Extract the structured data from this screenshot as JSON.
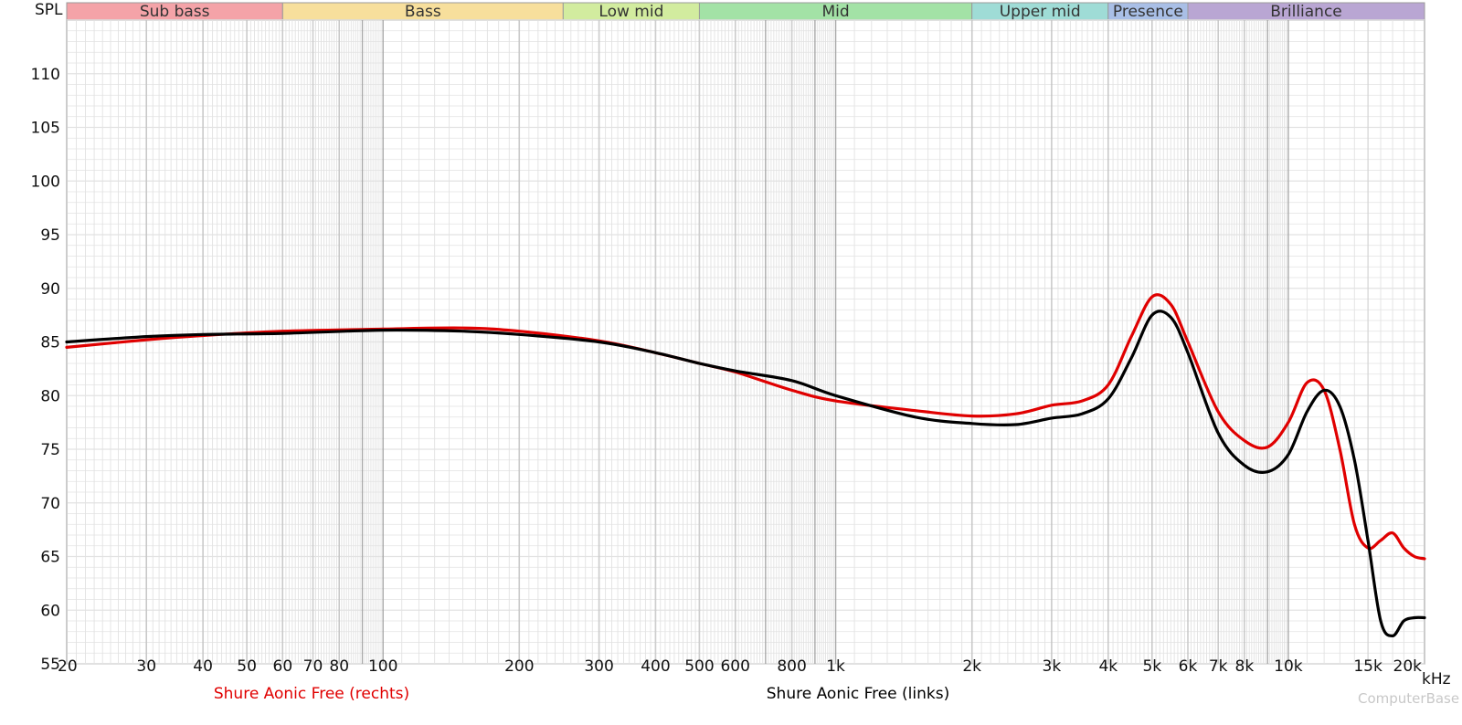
{
  "chart_data": {
    "type": "line",
    "ylabel": "SPL",
    "xunit": "kHz",
    "xscale": "log",
    "xlim": [
      20,
      20000
    ],
    "ylim": [
      55,
      115
    ],
    "grid": true,
    "yticks": [
      55,
      60,
      65,
      70,
      75,
      80,
      85,
      90,
      95,
      100,
      105,
      110
    ],
    "xticks": [
      {
        "value": 20,
        "label": "20"
      },
      {
        "value": 30,
        "label": "30"
      },
      {
        "value": 40,
        "label": "40"
      },
      {
        "value": 50,
        "label": "50"
      },
      {
        "value": 60,
        "label": "60"
      },
      {
        "value": 70,
        "label": "70"
      },
      {
        "value": 80,
        "label": "80"
      },
      {
        "value": 100,
        "label": "100"
      },
      {
        "value": 200,
        "label": "200"
      },
      {
        "value": 300,
        "label": "300"
      },
      {
        "value": 400,
        "label": "400"
      },
      {
        "value": 500,
        "label": "500"
      },
      {
        "value": 600,
        "label": "600"
      },
      {
        "value": 800,
        "label": "800"
      },
      {
        "value": 1000,
        "label": "1k"
      },
      {
        "value": 2000,
        "label": "2k"
      },
      {
        "value": 3000,
        "label": "3k"
      },
      {
        "value": 4000,
        "label": "4k"
      },
      {
        "value": 5000,
        "label": "5k"
      },
      {
        "value": 6000,
        "label": "6k"
      },
      {
        "value": 7000,
        "label": "7k"
      },
      {
        "value": 8000,
        "label": "8k"
      },
      {
        "value": 10000,
        "label": "10k"
      },
      {
        "value": 15000,
        "label": "15k"
      },
      {
        "value": 20000,
        "label": "20k"
      }
    ],
    "bands": [
      {
        "name": "Sub bass",
        "from": 20,
        "to": 60,
        "color": "#f4a3a8"
      },
      {
        "name": "Bass",
        "from": 60,
        "to": 250,
        "color": "#f7df9c"
      },
      {
        "name": "Low mid",
        "from": 250,
        "to": 500,
        "color": "#d2ec9f"
      },
      {
        "name": "Mid",
        "from": 500,
        "to": 2000,
        "color": "#a3e2a6"
      },
      {
        "name": "Upper mid",
        "from": 2000,
        "to": 4000,
        "color": "#9fdcd6"
      },
      {
        "name": "Presence",
        "from": 4000,
        "to": 6000,
        "color": "#a9bfe6"
      },
      {
        "name": "Brilliance",
        "from": 6000,
        "to": 20000,
        "color": "#b9a6d3"
      }
    ],
    "series": [
      {
        "name": "Shure Aonic Free (rechts)",
        "color": "#e00000",
        "x": [
          20,
          30,
          40,
          60,
          100,
          150,
          200,
          300,
          400,
          500,
          600,
          800,
          1000,
          1500,
          2000,
          2500,
          3000,
          3500,
          4000,
          4500,
          5000,
          5500,
          6000,
          7000,
          8000,
          9000,
          10000,
          11000,
          12000,
          13000,
          14000,
          15000,
          16000,
          17000,
          18000,
          19000,
          20000
        ],
        "y": [
          84.5,
          85.2,
          85.6,
          86.0,
          86.2,
          86.3,
          86.0,
          85.1,
          84.0,
          83.0,
          82.2,
          80.5,
          79.5,
          78.6,
          78.1,
          78.3,
          79.1,
          79.5,
          81.0,
          85.5,
          89.2,
          88.5,
          85.0,
          78.5,
          75.8,
          75.2,
          77.5,
          81.2,
          80.5,
          75.0,
          68.0,
          65.8,
          66.5,
          67.2,
          65.8,
          65.0,
          64.8
        ]
      },
      {
        "name": "Shure Aonic Free (links)",
        "color": "#000000",
        "x": [
          20,
          30,
          40,
          60,
          100,
          150,
          200,
          300,
          400,
          500,
          600,
          800,
          1000,
          1500,
          2000,
          2500,
          3000,
          3500,
          4000,
          4500,
          5000,
          5500,
          6000,
          7000,
          8000,
          9000,
          10000,
          11000,
          12000,
          13000,
          14000,
          15000,
          16000,
          17000,
          18000,
          19000,
          20000
        ],
        "y": [
          85.0,
          85.5,
          85.7,
          85.8,
          86.1,
          86.0,
          85.7,
          85.0,
          84.0,
          83.0,
          82.3,
          81.4,
          80.0,
          78.0,
          77.4,
          77.3,
          77.9,
          78.3,
          79.7,
          83.5,
          87.5,
          87.3,
          84.0,
          76.5,
          73.5,
          72.9,
          74.5,
          78.5,
          80.5,
          79.0,
          74.0,
          66.5,
          59.0,
          57.6,
          59.0,
          59.3,
          59.3
        ]
      }
    ]
  },
  "watermark": "ComputerBase"
}
